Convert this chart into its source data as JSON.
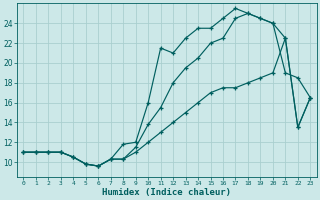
{
  "title": "",
  "xlabel": "Humidex (Indice chaleur)",
  "ylabel": "",
  "bg_color": "#cce8e8",
  "grid_color": "#aacfcf",
  "line_color": "#005f5f",
  "xlim": [
    -0.5,
    23.5
  ],
  "ylim": [
    8.5,
    26
  ],
  "xticks": [
    0,
    1,
    2,
    3,
    4,
    5,
    6,
    7,
    8,
    9,
    10,
    11,
    12,
    13,
    14,
    15,
    16,
    17,
    18,
    19,
    20,
    21,
    22,
    23
  ],
  "yticks": [
    10,
    12,
    14,
    16,
    18,
    20,
    22,
    24
  ],
  "series1_x": [
    0,
    1,
    2,
    3,
    4,
    5,
    6,
    7,
    8,
    9,
    10,
    11,
    12,
    13,
    14,
    15,
    16,
    17,
    18,
    19,
    20,
    21,
    22,
    23
  ],
  "series1_y": [
    11.0,
    11.0,
    11.0,
    11.0,
    10.5,
    9.8,
    9.6,
    10.3,
    10.3,
    11.5,
    13.8,
    15.5,
    18.0,
    19.5,
    20.5,
    22.0,
    22.5,
    24.5,
    25.0,
    24.5,
    24.0,
    22.5,
    13.5,
    16.5
  ],
  "series2_x": [
    0,
    1,
    2,
    3,
    4,
    5,
    6,
    7,
    8,
    9,
    10,
    11,
    12,
    13,
    14,
    15,
    16,
    17,
    18,
    19,
    20,
    21,
    22,
    23
  ],
  "series2_y": [
    11.0,
    11.0,
    11.0,
    11.0,
    10.5,
    9.8,
    9.6,
    10.3,
    11.8,
    12.0,
    16.0,
    21.5,
    21.0,
    22.5,
    23.5,
    23.5,
    24.5,
    25.5,
    25.0,
    24.5,
    24.0,
    19.0,
    18.5,
    16.5
  ],
  "series3_x": [
    0,
    1,
    2,
    3,
    4,
    5,
    6,
    7,
    8,
    9,
    10,
    11,
    12,
    13,
    14,
    15,
    16,
    17,
    18,
    19,
    20,
    21,
    22,
    23
  ],
  "series3_y": [
    11.0,
    11.0,
    11.0,
    11.0,
    10.5,
    9.8,
    9.6,
    10.3,
    10.3,
    11.0,
    12.0,
    13.0,
    14.0,
    15.0,
    16.0,
    17.0,
    17.5,
    17.5,
    18.0,
    18.5,
    19.0,
    22.5,
    13.5,
    16.5
  ]
}
